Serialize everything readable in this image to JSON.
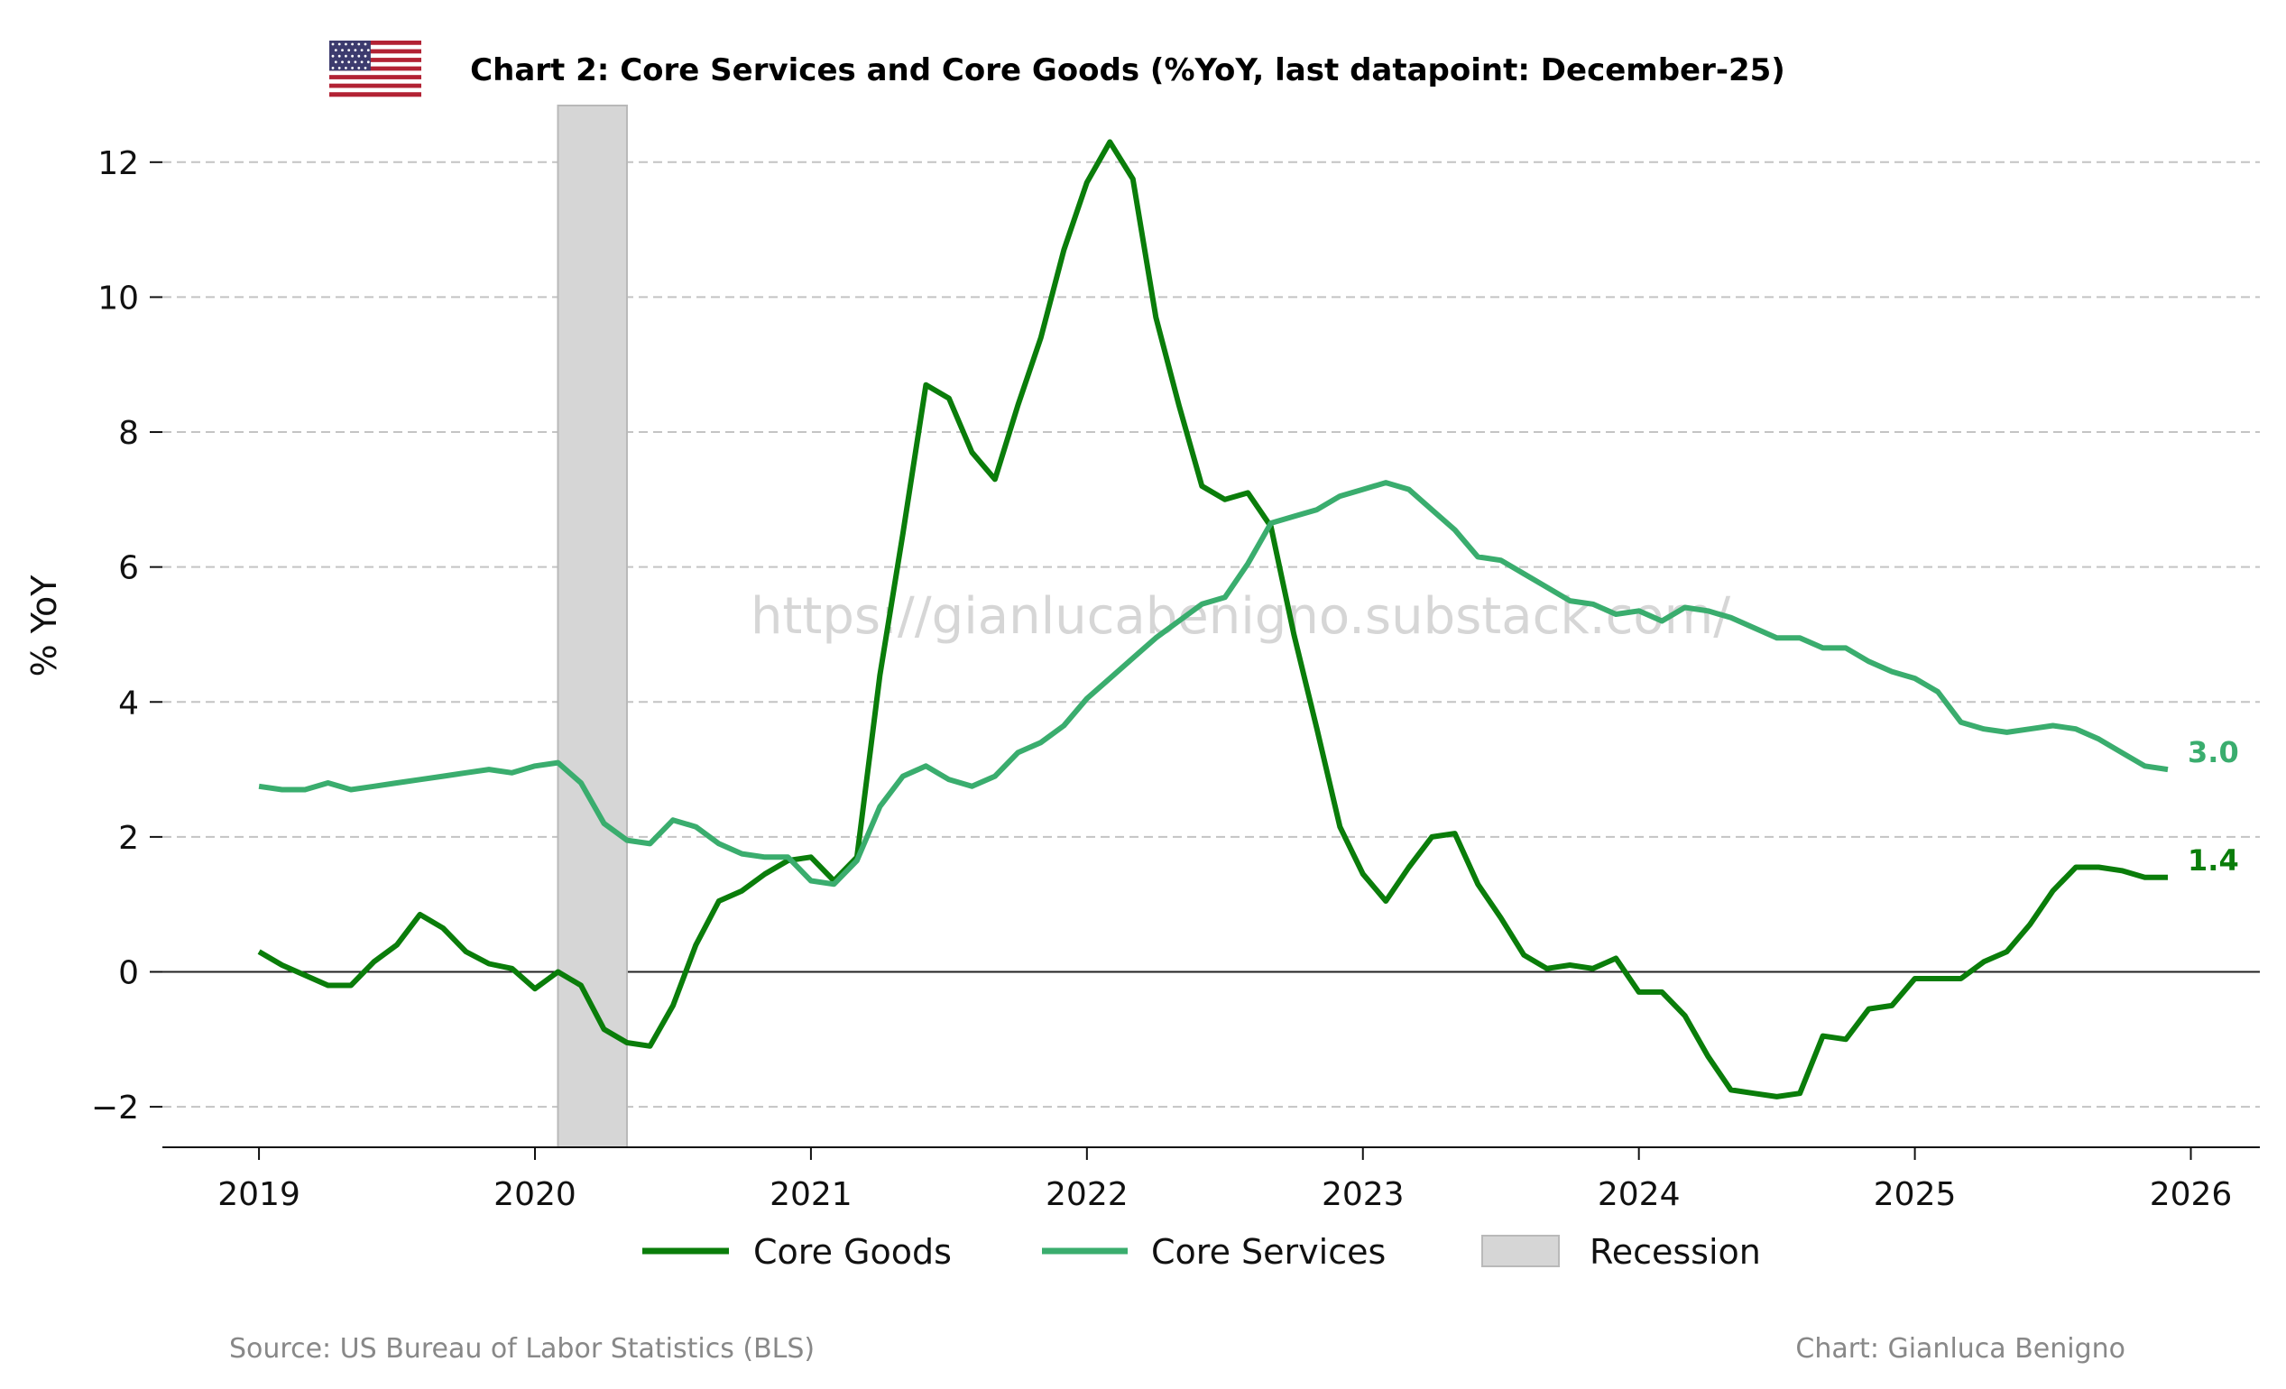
{
  "header": {
    "title": "Chart 2: Core Services and Core Goods (%YoY, last datapoint: December-25)",
    "flag_icon": "us-flag-icon"
  },
  "watermark": "https://gianlucabenigno.substack.com/",
  "footer": {
    "source": "Source: US Bureau of Labor Statistics (BLS)",
    "credit": "Chart: Gianluca Benigno"
  },
  "colors": {
    "core_goods": "#0a7d0a",
    "core_services": "#3aad6e",
    "recession": "#d6d6d6",
    "grid": "#c4c4c4"
  },
  "chart_data": {
    "type": "line",
    "title": "Chart 2: Core Services and Core Goods (%YoY, last datapoint: December-25)",
    "xlabel": "",
    "ylabel": "% YoY",
    "xlim": [
      2018.65,
      2026.25
    ],
    "ylim": [
      -2.6,
      13.0
    ],
    "x_ticks": [
      2019,
      2020,
      2021,
      2022,
      2023,
      2024,
      2025,
      2026
    ],
    "x_tick_labels": [
      "2019",
      "2020",
      "2021",
      "2022",
      "2023",
      "2024",
      "2025",
      "2026"
    ],
    "y_ticks": [
      -2,
      0,
      2,
      4,
      6,
      8,
      10,
      12
    ],
    "y_tick_labels": [
      "−2",
      "0",
      "2",
      "4",
      "6",
      "8",
      "10",
      "12"
    ],
    "grid": "horizontal dashed",
    "legend": "bottom-center",
    "recession": {
      "label": "Recession",
      "start": "2020-02",
      "end": "2020-04"
    },
    "series": [
      {
        "name": "Core Goods",
        "color": "#0a7d0a",
        "end_label": "1.4",
        "values": [
          0.3,
          0.1,
          -0.05,
          -0.2,
          -0.2,
          0.15,
          0.4,
          0.85,
          0.65,
          0.3,
          0.12,
          0.05,
          -0.25,
          0.0,
          -0.2,
          -0.85,
          -1.05,
          -1.1,
          -0.5,
          0.4,
          1.05,
          1.2,
          1.45,
          1.65,
          1.7,
          1.35,
          1.7,
          4.4,
          6.5,
          8.7,
          8.5,
          7.7,
          7.3,
          8.4,
          9.4,
          10.7,
          11.7,
          12.3,
          11.75,
          9.7,
          8.4,
          7.2,
          7.0,
          7.1,
          6.6,
          5.0,
          3.6,
          2.15,
          1.45,
          1.05,
          1.55,
          2.0,
          2.05,
          1.3,
          0.8,
          0.25,
          0.05,
          0.1,
          0.05,
          0.2,
          -0.3,
          -0.3,
          -0.65,
          -1.25,
          -1.75,
          -1.8,
          -1.85,
          -1.8,
          -0.95,
          -1.0,
          -0.55,
          -0.5,
          -0.1,
          -0.1,
          -0.1,
          0.15,
          0.3,
          0.7,
          1.2,
          1.55,
          1.55,
          1.5,
          1.4,
          1.4
        ]
      },
      {
        "name": "Core Services",
        "color": "#3aad6e",
        "end_label": "3.0",
        "values": [
          2.75,
          2.7,
          2.7,
          2.8,
          2.7,
          2.75,
          2.8,
          2.85,
          2.9,
          2.95,
          3.0,
          2.95,
          3.05,
          3.1,
          2.8,
          2.2,
          1.95,
          1.9,
          2.25,
          2.15,
          1.9,
          1.75,
          1.7,
          1.7,
          1.35,
          1.3,
          1.65,
          2.45,
          2.9,
          3.05,
          2.85,
          2.75,
          2.9,
          3.25,
          3.4,
          3.65,
          4.05,
          4.35,
          4.65,
          4.95,
          5.2,
          5.45,
          5.55,
          6.05,
          6.65,
          6.75,
          6.85,
          7.05,
          7.15,
          7.25,
          7.15,
          6.85,
          6.55,
          6.15,
          6.1,
          5.9,
          5.7,
          5.5,
          5.45,
          5.3,
          5.35,
          5.2,
          5.4,
          5.35,
          5.25,
          5.1,
          4.95,
          4.95,
          4.8,
          4.8,
          4.6,
          4.45,
          4.35,
          4.15,
          3.7,
          3.6,
          3.55,
          3.6,
          3.65,
          3.6,
          3.45,
          3.25,
          3.05,
          3.0
        ]
      }
    ],
    "x_start": "2019-01",
    "frequency": "monthly"
  }
}
